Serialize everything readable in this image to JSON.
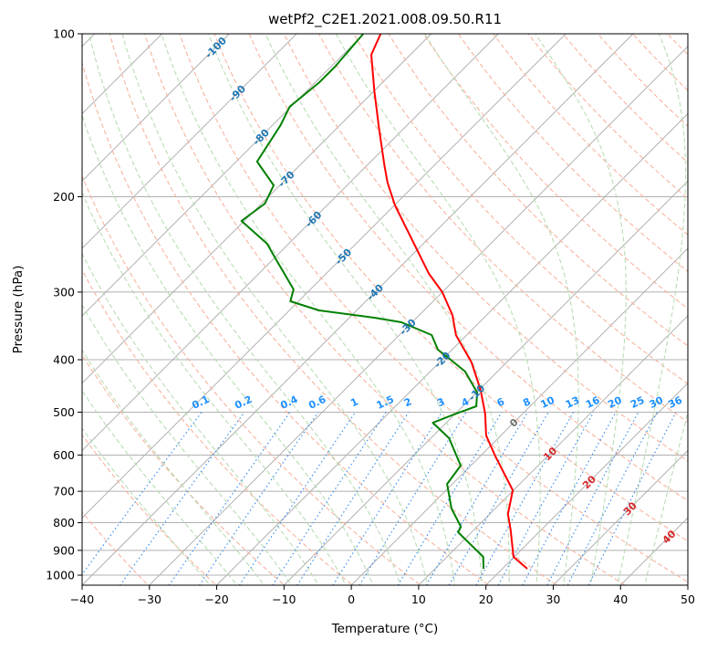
{
  "chart_data": {
    "type": "line",
    "subtype": "skew-t log-p",
    "title": "wetPf2_C2E1.2021.008.09.50.R11",
    "xlabel": "Temperature (°C)",
    "ylabel": "Pressure (hPa)",
    "xlim": [
      -40,
      50
    ],
    "ylim": [
      1050,
      100
    ],
    "x_ticks": [
      "−40",
      "−30",
      "−20",
      "−10",
      "0",
      "10",
      "20",
      "30",
      "40",
      "50"
    ],
    "x_tick_values": [
      -40,
      -30,
      -20,
      -10,
      0,
      10,
      20,
      30,
      40,
      50
    ],
    "y_ticks": [
      "100",
      "200",
      "300",
      "400",
      "500",
      "600",
      "700",
      "800",
      "900",
      "1000"
    ],
    "y_tick_values": [
      100,
      200,
      300,
      400,
      500,
      600,
      700,
      800,
      900,
      1000
    ],
    "grid": true,
    "series": [
      {
        "name": "temperature",
        "color": "#ff0000",
        "pressure": [
          100,
          109.3,
          127.7,
          149.2,
          174.2,
          188.3,
          207.5,
          237.7,
          277.6,
          300,
          330.7,
          360.1,
          404.7,
          454.7,
          502.9,
          552,
          603.6,
          697,
          771,
          823.5,
          925.3,
          973.2
        ],
        "temperature": [
          -77.5,
          -75.8,
          -69.9,
          -63.8,
          -57.6,
          -54.4,
          -49.9,
          -42.8,
          -34.7,
          -30.0,
          -25.1,
          -21.6,
          -15.2,
          -9.8,
          -5.6,
          -2.2,
          2.3,
          9.9,
          12.7,
          15.4,
          19.9,
          23.7
        ]
      },
      {
        "name": "dewpoint",
        "color": "#008000",
        "pressure": [
          100,
          115,
          122.9,
          136.4,
          147.5,
          172.2,
          190.5,
          205.9,
          221.7,
          244.3,
          259.9,
          296.6,
          312,
          324.3,
          334.5,
          341.1,
          360.1,
          383.3,
          398.5,
          420.7,
          460,
          487.5,
          502.9,
          523,
          558.5,
          627.6,
          678.4,
          753.3,
          813.9,
          833.1,
          925.3,
          973.2
        ],
        "temperature": [
          -80.1,
          -79.4,
          -79.4,
          -80.2,
          -78.8,
          -76.9,
          -70.9,
          -69.5,
          -70.4,
          -63.2,
          -59.8,
          -52.5,
          -51.2,
          -45.6,
          -36.3,
          -31.6,
          -25.2,
          -22.1,
          -19.0,
          -14.8,
          -9.9,
          -8.0,
          -9.9,
          -12.0,
          -7.3,
          -1.5,
          -0.8,
          3.5,
          7.6,
          8.0,
          15.4,
          17.2
        ]
      }
    ],
    "isotherm_labels": {
      "values": [
        "-100",
        "-90",
        "-80",
        "-70",
        "-60",
        "-50",
        "-40",
        "-30",
        "-20",
        "-10",
        "0",
        "10",
        "20",
        "30",
        "40"
      ],
      "temps": [
        -100,
        -90,
        -80,
        -70,
        -60,
        -50,
        -40,
        -30,
        -20,
        -10,
        0,
        10,
        20,
        30,
        40
      ],
      "colors": {
        "cold": "#1f77b4",
        "zero": "#707070",
        "warm": "#d62728"
      }
    },
    "mixing_ratio_labels": {
      "values": [
        "0.1",
        "0.2",
        "0.4",
        "0.6",
        "1",
        "1.5",
        "2",
        "3",
        "4",
        "6",
        "8",
        "10",
        "13",
        "16",
        "20",
        "25",
        "30",
        "36"
      ],
      "g_per_kg": [
        0.1,
        0.2,
        0.4,
        0.6,
        1,
        1.5,
        2,
        3,
        4,
        6,
        8,
        10,
        13,
        16,
        20,
        25,
        30,
        36
      ],
      "color": "#1e90ff"
    },
    "background_colors": {
      "isotherm": "#b0b0b0",
      "dry_adiabat": "#f7b49e",
      "moist_adiabat": "#b9dcb4",
      "mixing_ratio": "#3a8ff0",
      "isobar": "#b0b0b0"
    }
  }
}
